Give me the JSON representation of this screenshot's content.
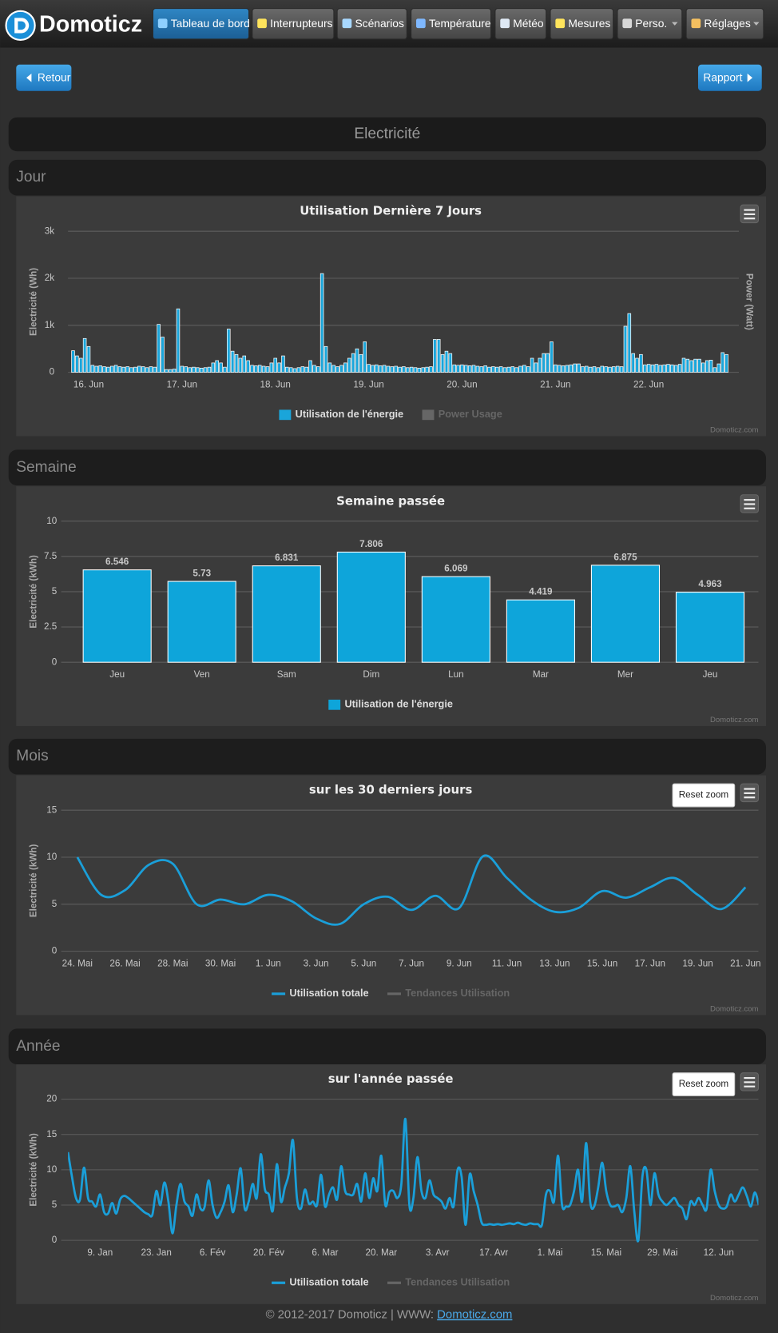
{
  "navbar": {
    "brand": "Domoticz",
    "items": [
      {
        "label": "Tableau de bord",
        "active": true
      },
      {
        "label": "Interrupteurs"
      },
      {
        "label": "Scénarios"
      },
      {
        "label": "Température"
      },
      {
        "label": "Météo"
      },
      {
        "label": "Mesures"
      },
      {
        "label": "Perso.",
        "dropdown": true
      },
      {
        "label": "Réglages",
        "dropdown": true
      }
    ]
  },
  "buttons": {
    "back": "Retour",
    "report": "Rapport"
  },
  "page_title": "Electricité",
  "sections": [
    "Jour",
    "Semaine",
    "Mois",
    "Année"
  ],
  "chart_data": [
    {
      "type": "bar",
      "title": "Utilisation Dernière 7 Jours",
      "ylabel": "Electricité (Wh)",
      "y2label": "Power (Watt)",
      "ylim": [
        0,
        3000
      ],
      "yticks": [
        0,
        {
          "value": 1000,
          "label": "1k"
        },
        {
          "value": 2000,
          "label": "2k"
        },
        {
          "value": 3000,
          "label": "3k"
        }
      ],
      "grid": true,
      "credit": "Domoticz.com",
      "categories": [
        null,
        null,
        null,
        null,
        "16. Jun",
        null,
        null,
        null,
        null,
        null,
        null,
        null,
        null,
        null,
        null,
        null,
        null,
        null,
        null,
        null,
        null,
        null,
        null,
        null,
        null,
        null,
        null,
        null,
        "17. Jun",
        null,
        null,
        null,
        null,
        null,
        null,
        null,
        null,
        null,
        null,
        null,
        null,
        null,
        null,
        null,
        null,
        null,
        null,
        null,
        null,
        null,
        null,
        null,
        "18. Jun",
        null,
        null,
        null,
        null,
        null,
        null,
        null,
        null,
        null,
        null,
        null,
        null,
        null,
        null,
        null,
        null,
        null,
        null,
        null,
        null,
        null,
        null,
        null,
        "19. Jun",
        null,
        null,
        null,
        null,
        null,
        null,
        null,
        null,
        null,
        null,
        null,
        null,
        null,
        null,
        null,
        null,
        null,
        null,
        null,
        null,
        null,
        null,
        null,
        "20. Jun",
        null,
        null,
        null,
        null,
        null,
        null,
        null,
        null,
        null,
        null,
        null,
        null,
        null,
        null,
        null,
        null,
        null,
        null,
        null,
        null,
        null,
        null,
        null,
        "21. Jun",
        null,
        null,
        null,
        null,
        null,
        null,
        null,
        null,
        null,
        null,
        null,
        null,
        null,
        null,
        null,
        null,
        null,
        null,
        null,
        null,
        null,
        null,
        null,
        "22. Jun",
        null,
        null,
        null,
        null,
        null,
        null,
        null,
        null,
        null,
        null,
        null,
        null,
        null,
        null,
        null,
        null,
        null,
        null,
        null,
        null
      ],
      "series": [
        {
          "name": "Utilisation de l'énergie",
          "color": "#1aa5da",
          "values": [
            460,
            350,
            300,
            720,
            550,
            150,
            130,
            140,
            120,
            110,
            130,
            150,
            120,
            110,
            120,
            100,
            110,
            130,
            120,
            100,
            120,
            110,
            1020,
            750,
            60,
            60,
            70,
            1350,
            130,
            120,
            100,
            110,
            100,
            90,
            100,
            110,
            200,
            250,
            200,
            110,
            920,
            450,
            380,
            300,
            350,
            250,
            150,
            140,
            150,
            130,
            120,
            200,
            300,
            200,
            350,
            110,
            100,
            80,
            100,
            120,
            110,
            250,
            150,
            120,
            2100,
            550,
            200,
            150,
            120,
            150,
            200,
            300,
            400,
            500,
            380,
            650,
            170,
            150,
            160,
            140,
            150,
            130,
            120,
            130,
            110,
            120,
            100,
            110,
            100,
            90,
            100,
            110,
            120,
            700,
            700,
            380,
            450,
            400,
            160,
            150,
            160,
            150,
            140,
            150,
            130,
            120,
            140,
            110,
            120,
            110,
            120,
            100,
            110,
            120,
            100,
            130,
            150,
            120,
            300,
            200,
            300,
            400,
            400,
            650,
            160,
            150,
            140,
            150,
            160,
            180,
            180,
            120,
            130,
            110,
            120,
            100,
            130,
            120,
            110,
            120,
            130,
            120,
            980,
            1250,
            400,
            300,
            380,
            160,
            170,
            160,
            170,
            150,
            160,
            170,
            160,
            150,
            170,
            300,
            280,
            250,
            280,
            280,
            200,
            250,
            260,
            100,
            180,
            420,
            380
          ]
        }
      ],
      "legend_disabled": [
        {
          "name": "Power Usage",
          "color": "#777777"
        }
      ]
    },
    {
      "type": "bar",
      "title": "Semaine passée",
      "ylabel": "Electricité (kWh)",
      "ylim": [
        0,
        10
      ],
      "yticks": [
        0,
        2.5,
        5,
        7.5,
        10
      ],
      "grid": true,
      "data_labels": true,
      "credit": "Domoticz.com",
      "categories": [
        "Jeu",
        "Ven",
        "Sam",
        "Dim",
        "Lun",
        "Mar",
        "Mer",
        "Jeu"
      ],
      "series": [
        {
          "name": "Utilisation de l'énergie",
          "color": "#0ea5da",
          "values": [
            6.546,
            5.73,
            6.831,
            7.806,
            6.069,
            4.419,
            6.875,
            4.963
          ]
        }
      ]
    },
    {
      "type": "line",
      "curve": "spline",
      "title": "sur les 30 derniers jours",
      "ylabel": "Electricité (kWh)",
      "ylim": [
        0,
        15
      ],
      "yticks": [
        0,
        5,
        10,
        15
      ],
      "grid": true,
      "reset_zoom": "Reset zoom",
      "credit": "Domoticz.com",
      "categories": [
        "24. Mai",
        null,
        "26. Mai",
        null,
        "28. Mai",
        null,
        "30. Mai",
        null,
        "1. Jun",
        null,
        "3. Jun",
        null,
        "5. Jun",
        null,
        "7. Jun",
        null,
        "9. Jun",
        null,
        "11. Jun",
        null,
        "13. Jun",
        null,
        "15. Jun",
        null,
        "17. Jun",
        null,
        "19. Jun",
        null,
        "21. Jun"
      ],
      "series": [
        {
          "name": "Utilisation totale",
          "color": "#1a9fd9",
          "values": [
            10,
            6.0,
            6.5,
            9.2,
            9.3,
            5.0,
            5.5,
            5.0,
            6.0,
            5.3,
            3.5,
            2.9,
            5.0,
            5.8,
            4.4,
            5.9,
            4.6,
            10.1,
            7.8,
            5.5,
            4.2,
            4.6,
            6.4,
            5.7,
            6.8,
            7.8,
            6.0,
            4.5,
            6.8
          ]
        }
      ],
      "legend_disabled": [
        {
          "name": "Tendances Utilisation",
          "color": "#777777"
        }
      ]
    },
    {
      "type": "line",
      "curve": "spline",
      "title": "sur l'année passée",
      "ylabel": "Electricité (kWh)",
      "ylim": [
        0,
        20
      ],
      "yticks": [
        0,
        5,
        10,
        15,
        20
      ],
      "grid": true,
      "reset_zoom": "Reset zoom",
      "credit": "Domoticz.com",
      "categories": [
        null,
        null,
        null,
        null,
        null,
        null,
        null,
        null,
        "9. Jan",
        null,
        null,
        null,
        null,
        null,
        null,
        null,
        null,
        null,
        null,
        null,
        null,
        null,
        "23. Jan",
        null,
        null,
        null,
        null,
        null,
        null,
        null,
        null,
        null,
        null,
        null,
        null,
        null,
        "6. Fév",
        null,
        null,
        null,
        null,
        null,
        null,
        null,
        null,
        null,
        null,
        null,
        null,
        null,
        "20. Fév",
        null,
        null,
        null,
        null,
        null,
        null,
        null,
        null,
        null,
        null,
        null,
        null,
        null,
        "6. Mar",
        null,
        null,
        null,
        null,
        null,
        null,
        null,
        null,
        null,
        null,
        null,
        null,
        null,
        "20. Mar",
        null,
        null,
        null,
        null,
        null,
        null,
        null,
        null,
        null,
        null,
        null,
        null,
        null,
        "3. Avr",
        null,
        null,
        null,
        null,
        null,
        null,
        null,
        null,
        null,
        null,
        null,
        null,
        null,
        "17. Avr",
        null,
        null,
        null,
        null,
        null,
        null,
        null,
        null,
        null,
        null,
        null,
        null,
        null,
        "1. Mai",
        null,
        null,
        null,
        null,
        null,
        null,
        null,
        null,
        null,
        null,
        null,
        null,
        null,
        "15. Mai",
        null,
        null,
        null,
        null,
        null,
        null,
        null,
        null,
        null,
        null,
        null,
        null,
        null,
        "29. Mai",
        null,
        null,
        null,
        null,
        null,
        null,
        null,
        null,
        null,
        null,
        null,
        null,
        null,
        "12. Jun",
        null,
        null,
        null,
        null,
        null,
        null,
        null,
        null,
        null,
        null
      ],
      "series": [
        {
          "name": "Utilisation totale",
          "color": "#1a9fd9",
          "values": [
            12.5,
            9,
            6,
            5.8,
            10.3,
            6,
            5.5,
            4.8,
            6.5,
            4,
            3.8,
            5.3,
            3.8,
            5.8,
            6.3,
            6,
            5.5,
            5,
            4.5,
            4,
            3.7,
            3.6,
            7,
            5,
            8.2,
            5.5,
            1,
            5,
            8,
            5.5,
            4.8,
            3.5,
            6.5,
            4.5,
            4.7,
            8.5,
            5,
            3.2,
            4,
            5.5,
            7.8,
            4,
            6.5,
            10.2,
            4.5,
            5.5,
            8,
            6,
            12.2,
            7.3,
            6.5,
            4.2,
            10.8,
            5.5,
            7.5,
            9.5,
            14.2,
            6,
            4.5,
            7.2,
            5.2,
            5.5,
            5,
            9.3,
            4.8,
            6.5,
            7.5,
            5.8,
            10.5,
            7,
            6.5,
            6.5,
            8,
            5.5,
            9.5,
            6,
            8.8,
            7,
            12,
            5,
            6.8,
            7,
            6,
            8,
            17.2,
            5,
            6,
            11.8,
            7,
            6,
            8.5,
            6.5,
            6,
            5.5,
            4.5,
            6,
            4.8,
            10,
            9,
            2.2,
            9.3,
            7,
            5,
            2.5,
            2.2,
            2.3,
            2.2,
            2.3,
            2.2,
            2.3,
            2.4,
            2.3,
            2.5,
            2.3,
            2.2,
            2.4,
            2.3,
            2.3,
            2.2,
            6.5,
            7,
            5.5,
            12,
            5,
            4.8,
            5,
            7,
            10,
            5.5,
            13.8,
            5.5,
            4.8,
            7.5,
            11,
            7,
            5,
            4.8,
            5,
            4,
            6,
            10.5,
            4,
            0,
            9,
            10,
            5,
            9.5,
            6.5,
            5.5,
            5,
            5.5,
            6,
            5,
            4.5,
            3,
            5.5,
            5,
            6,
            5,
            4.5,
            10,
            7,
            5,
            4.5,
            4.8,
            6.5,
            5.5,
            6.5,
            7.5,
            6.3,
            4.8,
            6.8,
            5
          ]
        }
      ],
      "legend_disabled": [
        {
          "name": "Tendances Utilisation",
          "color": "#777777"
        }
      ]
    }
  ],
  "footer": {
    "text": "© 2012-2017 Domoticz | WWW: ",
    "link": "Domoticz.com"
  }
}
